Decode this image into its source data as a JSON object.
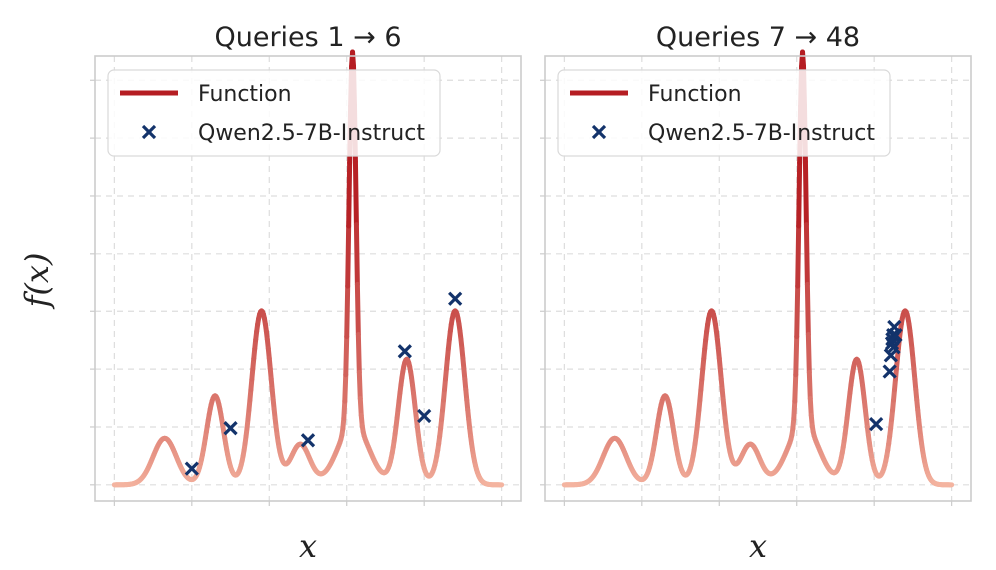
{
  "figure": {
    "ylabel": "f(x)",
    "xlabel": "x"
  },
  "colors": {
    "function": "#b51d22",
    "function_low": "#f4b4a0",
    "query_marker": "#13336b"
  },
  "chart_data": [
    {
      "type": "line",
      "title": "Queries 1 → 6",
      "title_parts": {
        "prefix": "Queries ",
        "from": "1",
        "to": "6"
      },
      "xlabel": "x",
      "ylabel": "f(x)",
      "xlim": [
        -0.05,
        1.05
      ],
      "ylim": [
        -0.04,
        1.06
      ],
      "grid": true,
      "ticks_labeled": false,
      "legend": {
        "placement": "top-left",
        "entries": [
          "Function",
          "Qwen2.5-7B-Instruct"
        ]
      },
      "series": [
        {
          "name": "Function",
          "kind": "line",
          "components": [
            {
              "center": 0.13,
              "height": 0.115,
              "width": 0.03
            },
            {
              "center": 0.26,
              "height": 0.22,
              "width": 0.022
            },
            {
              "center": 0.38,
              "height": 0.43,
              "width": 0.025
            },
            {
              "center": 0.48,
              "height": 0.1,
              "width": 0.025
            },
            {
              "center": 0.615,
              "height": 0.92,
              "width": 0.009
            },
            {
              "center": 0.617,
              "height": 0.15,
              "width": 0.04
            },
            {
              "center": 0.755,
              "height": 0.31,
              "width": 0.022
            },
            {
              "center": 0.88,
              "height": 0.43,
              "width": 0.025
            }
          ]
        },
        {
          "name": "Qwen2.5-7B-Instruct",
          "kind": "scatter",
          "x": [
            0.2,
            0.3,
            0.5,
            0.75,
            0.8,
            0.88
          ],
          "y": [
            0.04,
            0.14,
            0.11,
            0.33,
            0.17,
            0.46
          ]
        }
      ]
    },
    {
      "type": "line",
      "title": "Queries 7 → 48",
      "title_parts": {
        "prefix": "Queries ",
        "from": "7",
        "to": "48"
      },
      "xlabel": "x",
      "ylabel": "f(x)",
      "xlim": [
        -0.05,
        1.05
      ],
      "ylim": [
        -0.04,
        1.06
      ],
      "grid": true,
      "ticks_labeled": false,
      "legend": {
        "placement": "top-left",
        "entries": [
          "Function",
          "Qwen2.5-7B-Instruct"
        ]
      },
      "series": [
        {
          "name": "Function",
          "kind": "line",
          "components": [
            {
              "center": 0.13,
              "height": 0.115,
              "width": 0.03
            },
            {
              "center": 0.26,
              "height": 0.22,
              "width": 0.022
            },
            {
              "center": 0.38,
              "height": 0.43,
              "width": 0.025
            },
            {
              "center": 0.48,
              "height": 0.1,
              "width": 0.025
            },
            {
              "center": 0.615,
              "height": 0.92,
              "width": 0.009
            },
            {
              "center": 0.617,
              "height": 0.15,
              "width": 0.04
            },
            {
              "center": 0.755,
              "height": 0.31,
              "width": 0.022
            },
            {
              "center": 0.88,
              "height": 0.43,
              "width": 0.025
            }
          ]
        },
        {
          "name": "Qwen2.5-7B-Instruct",
          "kind": "scatter",
          "x": [
            0.805,
            0.84,
            0.843,
            0.846,
            0.849,
            0.852,
            0.855,
            0.85,
            0.847
          ],
          "y": [
            0.15,
            0.28,
            0.32,
            0.35,
            0.37,
            0.39,
            0.37,
            0.34,
            0.36
          ]
        }
      ]
    }
  ]
}
